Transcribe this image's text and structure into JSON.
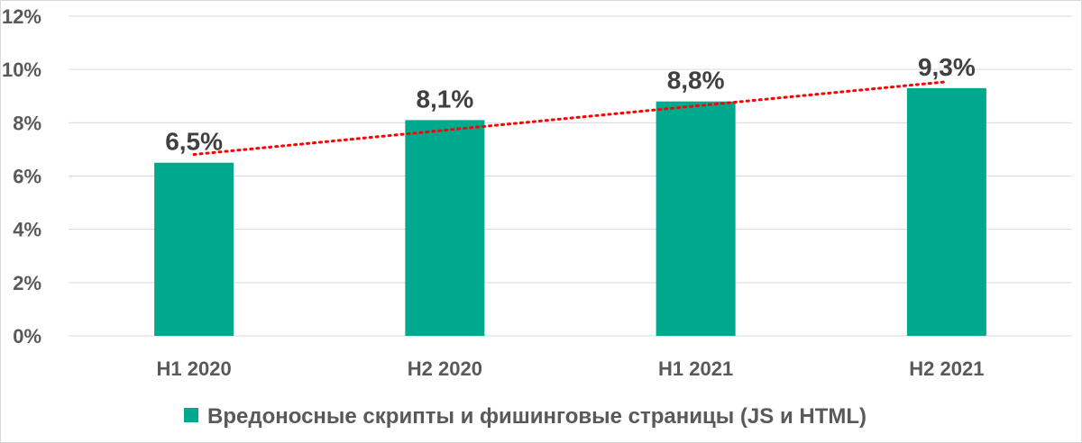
{
  "chart_data": {
    "type": "bar",
    "categories": [
      "H1 2020",
      "H2 2020",
      "H1 2021",
      "H2 2021"
    ],
    "series": [
      {
        "name": "Вредоносные скрипты и фишинговые страницы (JS и HTML)",
        "values": [
          6.5,
          8.1,
          8.8,
          9.3
        ],
        "labels": [
          "6,5%",
          "8,1%",
          "8,8%",
          "9,3%"
        ],
        "color": "#00a88e"
      }
    ],
    "y_ticks": [
      "0%",
      "2%",
      "4%",
      "6%",
      "8%",
      "10%",
      "12%"
    ],
    "ylim": [
      0,
      12
    ],
    "grid": true,
    "trendline": {
      "type": "linear",
      "style": "dotted",
      "color": "#ff0000"
    },
    "legend_position": "bottom"
  }
}
